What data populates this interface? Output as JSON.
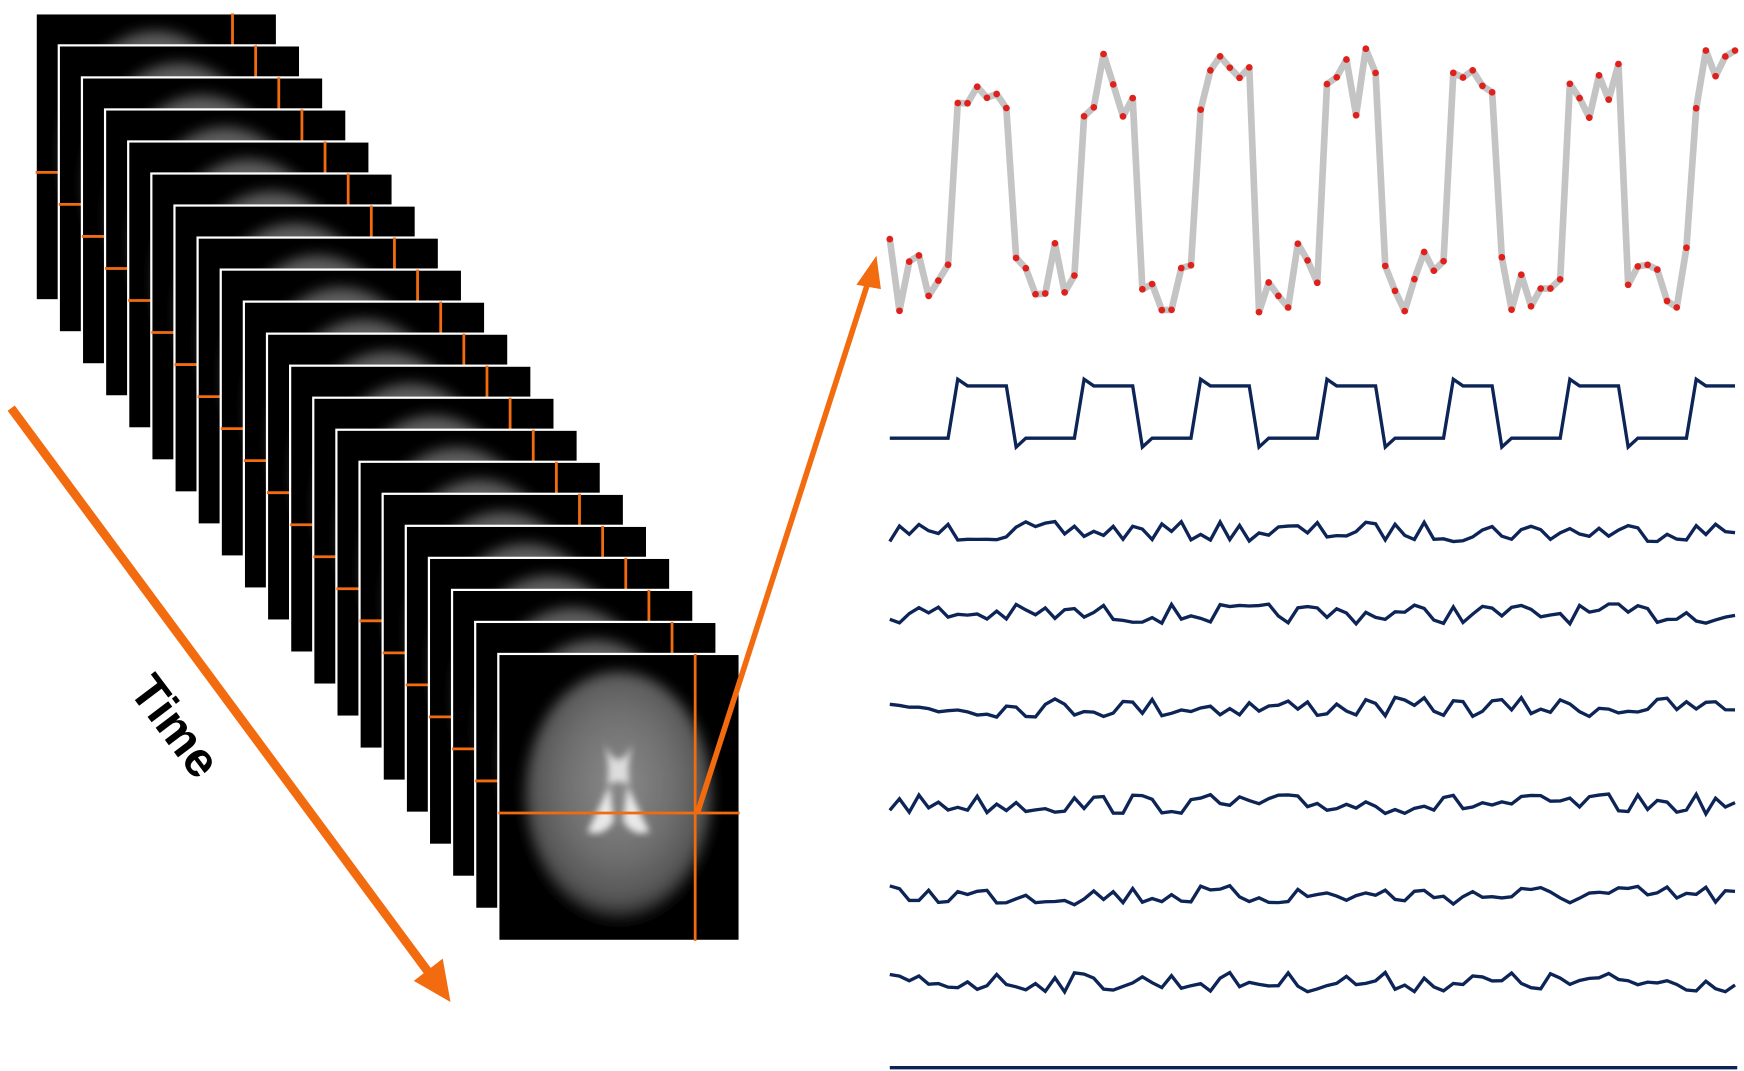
{
  "time_label": "Time"
}
